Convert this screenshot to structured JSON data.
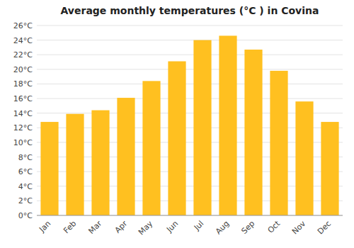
{
  "chart_data": {
    "type": "bar",
    "title": "Average monthly temperatures (°C ) in Covina",
    "categories": [
      "Jan",
      "Feb",
      "Mar",
      "Apr",
      "May",
      "Jun",
      "Jul",
      "Aug",
      "Sep",
      "Oct",
      "Nov",
      "Dec"
    ],
    "values": [
      12.8,
      13.9,
      14.4,
      16.1,
      18.4,
      21.1,
      24.0,
      24.6,
      22.7,
      19.8,
      15.6,
      12.8
    ],
    "color": "#FFC020",
    "ylim": [
      0,
      26
    ],
    "yticks": [
      {
        "value": 0,
        "label": "0°C"
      },
      {
        "value": 2,
        "label": "2°C"
      },
      {
        "value": 4,
        "label": "4°C"
      },
      {
        "value": 6,
        "label": "6°C"
      },
      {
        "value": 8,
        "label": "8°C"
      },
      {
        "value": 10,
        "label": "10°C"
      },
      {
        "value": 12,
        "label": "12°C"
      },
      {
        "value": 14,
        "label": "14°C"
      },
      {
        "value": 16,
        "label": "16°C"
      },
      {
        "value": 18,
        "label": "18°C"
      },
      {
        "value": 20,
        "label": "20°C"
      },
      {
        "value": 22,
        "label": "22°C"
      },
      {
        "value": 24,
        "label": "24°C"
      },
      {
        "value": 26,
        "label": "26°C"
      }
    ],
    "grid": true
  }
}
